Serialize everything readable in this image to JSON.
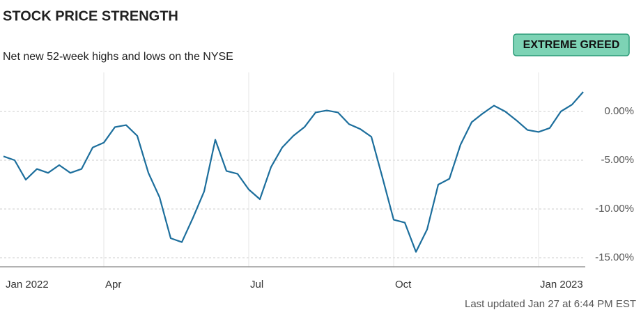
{
  "chart_data": {
    "type": "line",
    "title": "STOCK PRICE STRENGTH",
    "subtitle": "Net new 52-week highs and lows on the NYSE",
    "rating": "EXTREME GREED",
    "footer": "Last updated Jan 27 at 6:44 PM EST",
    "categories": [
      "Jan 2022",
      null,
      null,
      null,
      null,
      null,
      null,
      null,
      null,
      "Apr",
      null,
      null,
      null,
      null,
      null,
      null,
      null,
      null,
      null,
      null,
      null,
      null,
      "Jul",
      null,
      null,
      null,
      null,
      null,
      null,
      null,
      null,
      null,
      null,
      null,
      null,
      "Oct",
      null,
      null,
      null,
      null,
      null,
      null,
      null,
      null,
      null,
      null,
      null,
      null,
      "Jan 2023",
      null,
      null,
      null,
      null
    ],
    "values": [
      -4.6,
      -5.0,
      -7.0,
      -5.9,
      -6.3,
      -5.5,
      -6.3,
      -5.9,
      -3.7,
      -3.2,
      -1.6,
      -1.4,
      -2.5,
      -6.3,
      -8.8,
      -13.0,
      -13.4,
      -10.9,
      -8.2,
      -2.9,
      -6.1,
      -6.4,
      -8.0,
      -9.0,
      -5.7,
      -3.7,
      -2.5,
      -1.6,
      -0.1,
      0.1,
      -0.1,
      -1.3,
      -1.8,
      -2.6,
      -6.8,
      -11.1,
      -11.4,
      -14.4,
      -12.1,
      -7.5,
      -6.9,
      -3.4,
      -1.1,
      -0.2,
      0.6,
      0.0,
      -0.9,
      -1.9,
      -2.1,
      -1.7,
      0.0,
      0.7,
      2.0
    ],
    "color": "#1c6e9c",
    "ylim": [
      -16,
      4
    ],
    "yticks": [
      {
        "value": 0,
        "label": "0.00%"
      },
      {
        "value": -5,
        "label": "-5.00%"
      },
      {
        "value": -10,
        "label": "-10.00%"
      },
      {
        "value": -15,
        "label": "-15.00%"
      }
    ],
    "grid": true
  }
}
